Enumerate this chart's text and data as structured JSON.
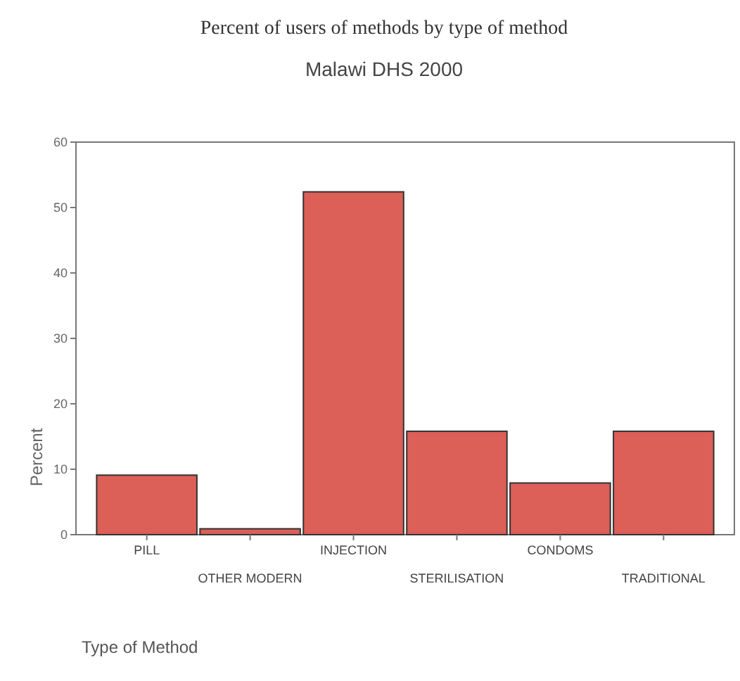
{
  "chart_data": {
    "type": "bar",
    "title": "Percent of users of methods by type of method",
    "subtitle": "Malawi DHS 2000",
    "xlabel": "Type of Method",
    "ylabel": "Percent",
    "categories": [
      "PILL",
      "OTHER MODERN",
      "INJECTION",
      "STERILISATION",
      "CONDOMS",
      "TRADITIONAL"
    ],
    "values": [
      9.1,
      0.9,
      52.4,
      15.8,
      7.9,
      15.8
    ],
    "color": "#dc5f58",
    "ylim": [
      0,
      60
    ],
    "yticks": [
      0,
      10,
      20,
      30,
      40,
      50,
      60
    ],
    "grid": false
  }
}
